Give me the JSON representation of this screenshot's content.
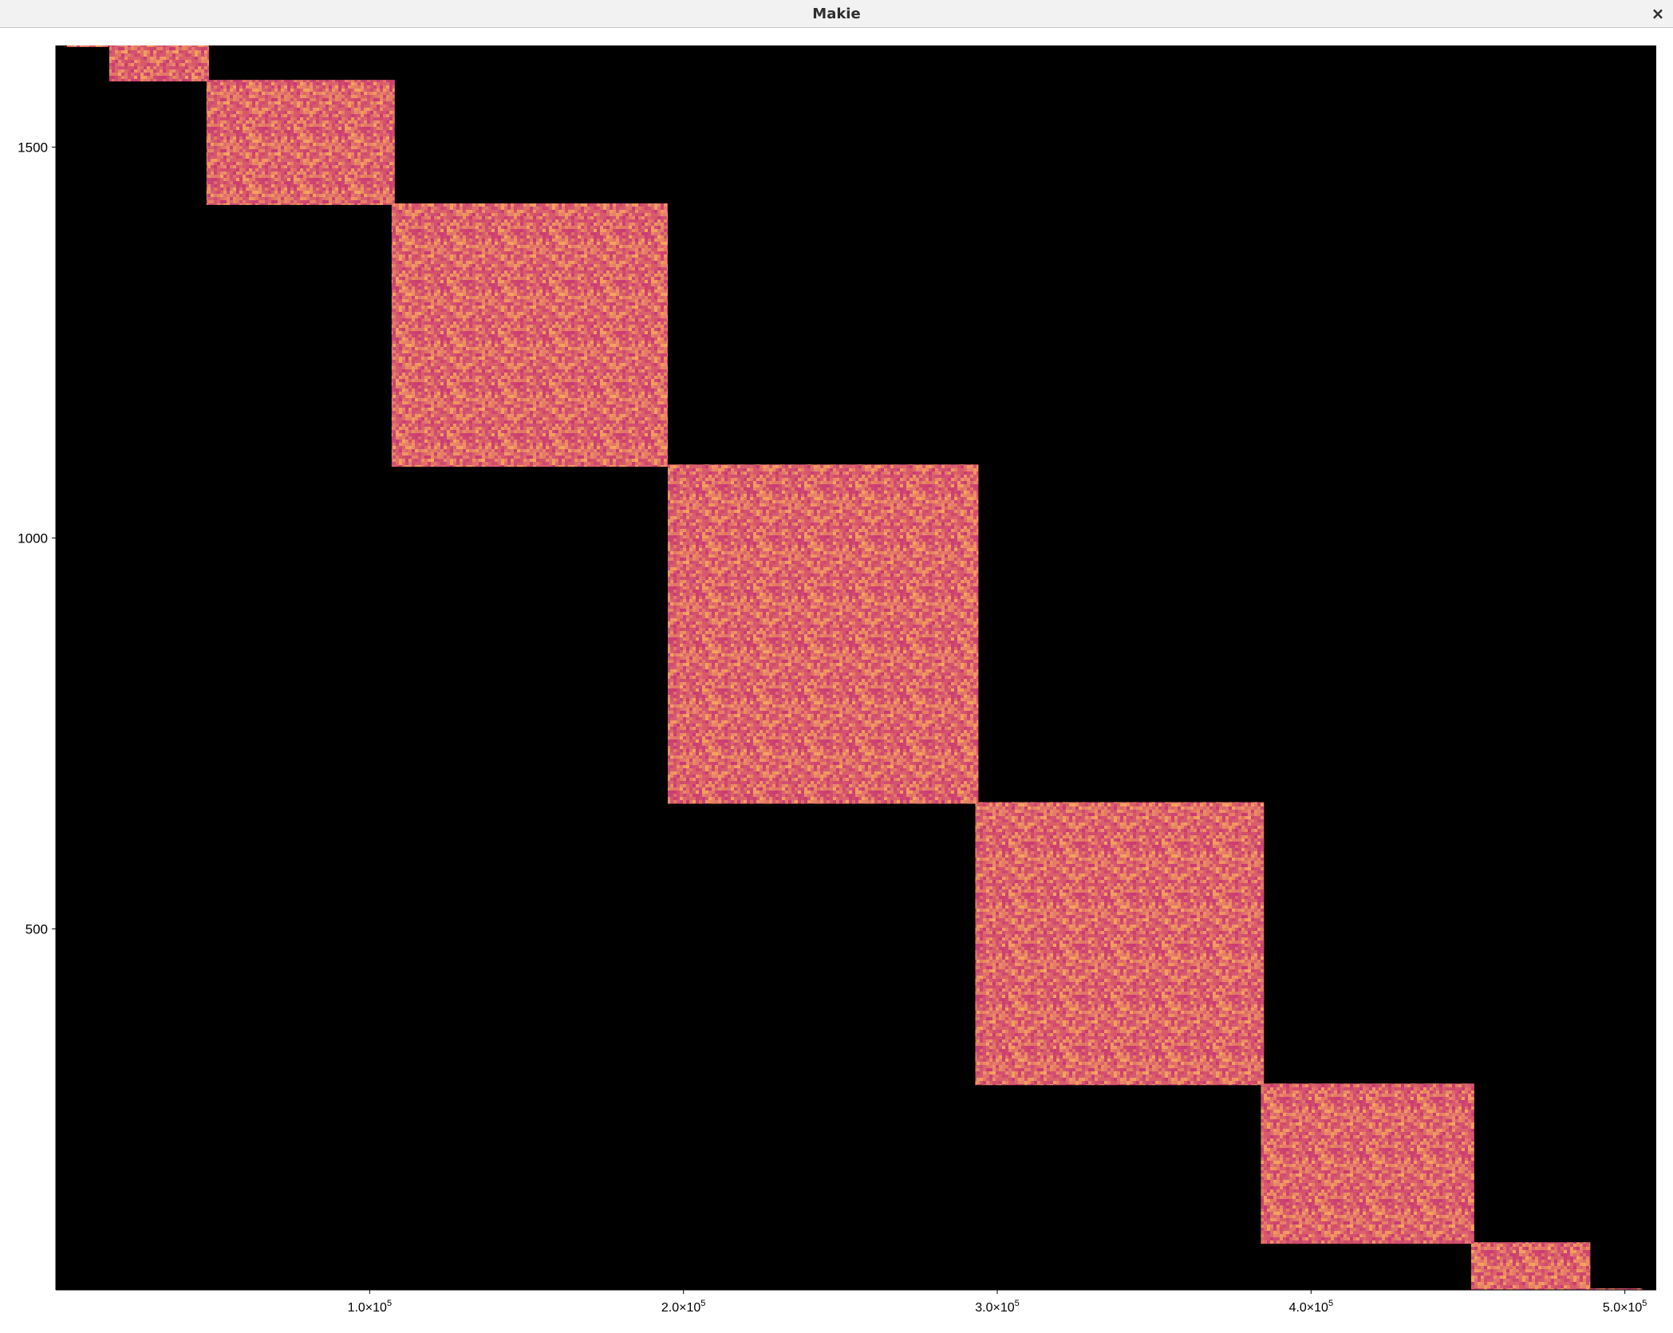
{
  "window": {
    "title": "Makie",
    "close_glyph": "×"
  },
  "chart_data": {
    "type": "heatmap",
    "title": "",
    "xlabel": "",
    "ylabel": "",
    "background_color": "#000000",
    "block_color_low": "#c93a73",
    "block_color_high": "#f6a55e",
    "xlim": [
      0,
      510000
    ],
    "ylim": [
      38,
      1630
    ],
    "grid": false,
    "x_ticks": [
      {
        "value": 100000,
        "mantissa": "1.0×10",
        "exponent": "5"
      },
      {
        "value": 200000,
        "mantissa": "2.0×10",
        "exponent": "5"
      },
      {
        "value": 300000,
        "mantissa": "3.0×10",
        "exponent": "5"
      },
      {
        "value": 400000,
        "mantissa": "4.0×10",
        "exponent": "5"
      },
      {
        "value": 500000,
        "mantissa": "5.0×10",
        "exponent": "5"
      }
    ],
    "y_ticks": [
      {
        "value": 500,
        "label": "500"
      },
      {
        "value": 1000,
        "label": "1000"
      },
      {
        "value": 1500,
        "label": "1500"
      }
    ],
    "blocks": [
      {
        "x0": 3500,
        "x1": 16800,
        "y0": 1628,
        "y1": 1630
      },
      {
        "x0": 17000,
        "x1": 48800,
        "y0": 1584,
        "y1": 1630
      },
      {
        "x0": 48000,
        "x1": 108000,
        "y0": 1426,
        "y1": 1586
      },
      {
        "x0": 107000,
        "x1": 195000,
        "y0": 1091,
        "y1": 1428
      },
      {
        "x0": 195000,
        "x1": 294000,
        "y0": 660,
        "y1": 1094
      },
      {
        "x0": 293000,
        "x1": 385000,
        "y0": 300,
        "y1": 662
      },
      {
        "x0": 384000,
        "x1": 452000,
        "y0": 97,
        "y1": 302
      },
      {
        "x0": 451000,
        "x1": 489000,
        "y0": 30,
        "y1": 99
      },
      {
        "x0": 489000,
        "x1": 505500,
        "y0": 30,
        "y1": 40
      }
    ]
  }
}
